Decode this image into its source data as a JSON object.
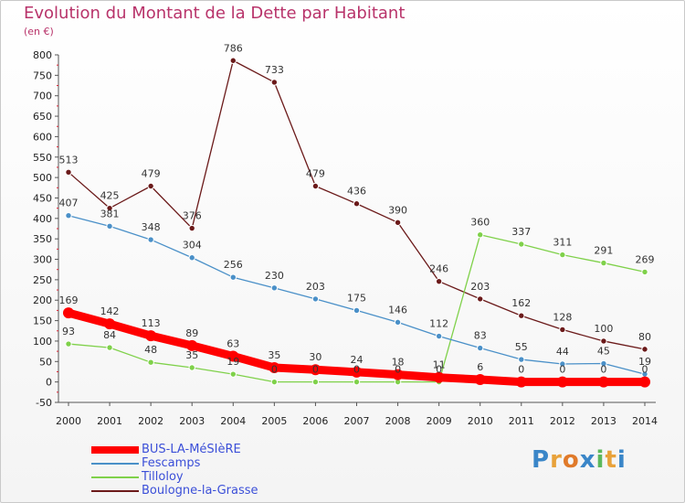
{
  "title": "Evolution du Montant de la Dette par Habitant",
  "subtitle": "(en €)",
  "logo": {
    "text": "Proxiti",
    "colors": [
      "#3a86c8",
      "#e8a23a",
      "#e07a2a",
      "#3a86c8",
      "#5cb85c",
      "#e8a23a",
      "#3a86c8"
    ]
  },
  "chart_data": {
    "type": "line",
    "title": "Evolution du Montant de la Dette par Habitant",
    "subtitle": "(en €)",
    "xlabel": "",
    "ylabel": "",
    "x": [
      "2000",
      "2001",
      "2002",
      "2003",
      "2004",
      "2005",
      "2006",
      "2007",
      "2008",
      "2009",
      "2010",
      "2011",
      "2012",
      "2013",
      "2014"
    ],
    "ylim": [
      -50,
      800
    ],
    "yticks": [
      -50,
      0,
      50,
      100,
      150,
      200,
      250,
      300,
      350,
      400,
      450,
      500,
      550,
      600,
      650,
      700,
      750,
      800
    ],
    "grid": false,
    "legend_position": "bottom-left",
    "series": [
      {
        "name": "BUS-LA-MéSIèRE",
        "color": "#ff0000",
        "values": [
          169,
          142,
          113,
          89,
          63,
          35,
          30,
          24,
          18,
          11,
          6,
          0,
          0,
          0,
          0
        ],
        "labels": [
          "169",
          "142",
          "113",
          "89",
          "63",
          "35",
          "30",
          "24",
          "18",
          "11",
          "6",
          "0",
          "0",
          "0",
          "0"
        ]
      },
      {
        "name": "Fescamps",
        "color": "#4a90c8",
        "values": [
          407,
          381,
          348,
          304,
          256,
          230,
          203,
          175,
          146,
          112,
          83,
          55,
          44,
          45,
          19
        ],
        "labels": [
          "407",
          "381",
          "348",
          "304",
          "256",
          "230",
          "203",
          "175",
          "146",
          "112",
          "83",
          "55",
          "44",
          "45",
          "19"
        ]
      },
      {
        "name": "Tilloloy",
        "color": "#7fd14a",
        "values": [
          93,
          84,
          48,
          35,
          19,
          0,
          0,
          0,
          0,
          0,
          360,
          337,
          311,
          291,
          269
        ],
        "labels": [
          "93",
          "84",
          "48",
          "35",
          "19",
          "0",
          "0",
          "0",
          "0",
          "0",
          "360",
          "337",
          "311",
          "291",
          "269"
        ]
      },
      {
        "name": "Boulogne-la-Grasse",
        "color": "#6b1a1a",
        "values": [
          513,
          425,
          479,
          376,
          786,
          733,
          479,
          436,
          390,
          246,
          203,
          162,
          128,
          100,
          80
        ],
        "labels": [
          "513",
          "425",
          "479",
          "376",
          "786",
          "733",
          "479",
          "436",
          "390",
          "246",
          "203",
          "162",
          "128",
          "100",
          "80"
        ]
      }
    ]
  }
}
